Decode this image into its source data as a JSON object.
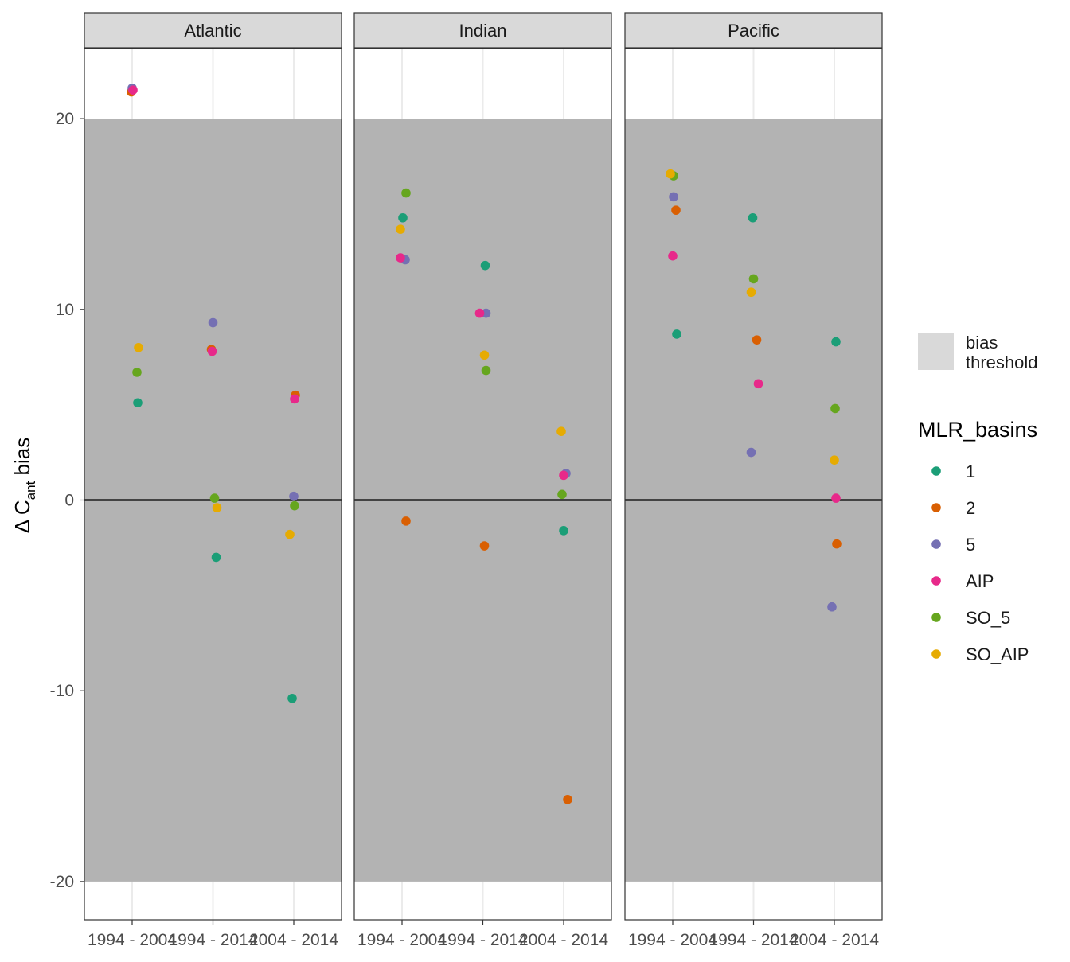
{
  "chart_data": {
    "type": "scatter",
    "facets": [
      "Atlantic",
      "Indian",
      "Pacific"
    ],
    "categories": [
      "1994 - 2004",
      "1994 - 2014",
      "2004 - 2014"
    ],
    "ylabel": {
      "prefix": "Δ C",
      "subscript": "ant",
      "suffix": " bias"
    },
    "ylim": [
      -22,
      24
    ],
    "yticks": [
      -20,
      -10,
      0,
      10,
      20
    ],
    "bias_threshold": [
      -20,
      20
    ],
    "hline": 0,
    "band_legend": {
      "line1": "bias",
      "line2": "threshold",
      "color": "#d9d9d9"
    },
    "band_color": "#b3b3b3",
    "legend": {
      "title": "MLR_basins",
      "position": "right",
      "items": [
        {
          "label": "1",
          "color": "#1b9e77"
        },
        {
          "label": "2",
          "color": "#d95f02"
        },
        {
          "label": "5",
          "color": "#7570b3"
        },
        {
          "label": "AIP",
          "color": "#e7298a"
        },
        {
          "label": "SO_5",
          "color": "#66a61e"
        },
        {
          "label": "SO_AIP",
          "color": "#e6ab02"
        }
      ]
    },
    "points": [
      {
        "basin": "Atlantic",
        "period": "1994 - 2004",
        "group": "1",
        "value": 5.1
      },
      {
        "basin": "Atlantic",
        "period": "1994 - 2004",
        "group": "2",
        "value": 21.4
      },
      {
        "basin": "Atlantic",
        "period": "1994 - 2004",
        "group": "5",
        "value": 21.6
      },
      {
        "basin": "Atlantic",
        "period": "1994 - 2004",
        "group": "AIP",
        "value": 21.5
      },
      {
        "basin": "Atlantic",
        "period": "1994 - 2004",
        "group": "SO_5",
        "value": 6.7
      },
      {
        "basin": "Atlantic",
        "period": "1994 - 2004",
        "group": "SO_AIP",
        "value": 8.0
      },
      {
        "basin": "Atlantic",
        "period": "1994 - 2014",
        "group": "1",
        "value": -3.0
      },
      {
        "basin": "Atlantic",
        "period": "1994 - 2014",
        "group": "2",
        "value": 7.9
      },
      {
        "basin": "Atlantic",
        "period": "1994 - 2014",
        "group": "5",
        "value": 9.3
      },
      {
        "basin": "Atlantic",
        "period": "1994 - 2014",
        "group": "AIP",
        "value": 7.8
      },
      {
        "basin": "Atlantic",
        "period": "1994 - 2014",
        "group": "SO_5",
        "value": 0.1
      },
      {
        "basin": "Atlantic",
        "period": "1994 - 2014",
        "group": "SO_AIP",
        "value": -0.4
      },
      {
        "basin": "Atlantic",
        "period": "2004 - 2014",
        "group": "1",
        "value": -10.4
      },
      {
        "basin": "Atlantic",
        "period": "2004 - 2014",
        "group": "2",
        "value": 5.5
      },
      {
        "basin": "Atlantic",
        "period": "2004 - 2014",
        "group": "5",
        "value": 0.2
      },
      {
        "basin": "Atlantic",
        "period": "2004 - 2014",
        "group": "AIP",
        "value": 5.3
      },
      {
        "basin": "Atlantic",
        "period": "2004 - 2014",
        "group": "SO_5",
        "value": -0.3
      },
      {
        "basin": "Atlantic",
        "period": "2004 - 2014",
        "group": "SO_AIP",
        "value": -1.8
      },
      {
        "basin": "Indian",
        "period": "1994 - 2004",
        "group": "1",
        "value": 14.8
      },
      {
        "basin": "Indian",
        "period": "1994 - 2004",
        "group": "2",
        "value": -1.1
      },
      {
        "basin": "Indian",
        "period": "1994 - 2004",
        "group": "5",
        "value": 12.6
      },
      {
        "basin": "Indian",
        "period": "1994 - 2004",
        "group": "AIP",
        "value": 12.7
      },
      {
        "basin": "Indian",
        "period": "1994 - 2004",
        "group": "SO_5",
        "value": 16.1
      },
      {
        "basin": "Indian",
        "period": "1994 - 2004",
        "group": "SO_AIP",
        "value": 14.2
      },
      {
        "basin": "Indian",
        "period": "1994 - 2014",
        "group": "1",
        "value": 12.3
      },
      {
        "basin": "Indian",
        "period": "1994 - 2014",
        "group": "2",
        "value": -2.4
      },
      {
        "basin": "Indian",
        "period": "1994 - 2014",
        "group": "5",
        "value": 9.8
      },
      {
        "basin": "Indian",
        "period": "1994 - 2014",
        "group": "AIP",
        "value": 9.8
      },
      {
        "basin": "Indian",
        "period": "1994 - 2014",
        "group": "SO_5",
        "value": 6.8
      },
      {
        "basin": "Indian",
        "period": "1994 - 2014",
        "group": "SO_AIP",
        "value": 7.6
      },
      {
        "basin": "Indian",
        "period": "2004 - 2014",
        "group": "1",
        "value": -1.6
      },
      {
        "basin": "Indian",
        "period": "2004 - 2014",
        "group": "2",
        "value": -15.7
      },
      {
        "basin": "Indian",
        "period": "2004 - 2014",
        "group": "5",
        "value": 1.4
      },
      {
        "basin": "Indian",
        "period": "2004 - 2014",
        "group": "AIP",
        "value": 1.3
      },
      {
        "basin": "Indian",
        "period": "2004 - 2014",
        "group": "SO_5",
        "value": 0.3
      },
      {
        "basin": "Indian",
        "period": "2004 - 2014",
        "group": "SO_AIP",
        "value": 3.6
      },
      {
        "basin": "Pacific",
        "period": "1994 - 2004",
        "group": "1",
        "value": 8.7
      },
      {
        "basin": "Pacific",
        "period": "1994 - 2004",
        "group": "2",
        "value": 15.2
      },
      {
        "basin": "Pacific",
        "period": "1994 - 2004",
        "group": "5",
        "value": 15.9
      },
      {
        "basin": "Pacific",
        "period": "1994 - 2004",
        "group": "AIP",
        "value": 12.8
      },
      {
        "basin": "Pacific",
        "period": "1994 - 2004",
        "group": "SO_5",
        "value": 17.0
      },
      {
        "basin": "Pacific",
        "period": "1994 - 2004",
        "group": "SO_AIP",
        "value": 17.1
      },
      {
        "basin": "Pacific",
        "period": "1994 - 2014",
        "group": "1",
        "value": 14.8
      },
      {
        "basin": "Pacific",
        "period": "1994 - 2014",
        "group": "2",
        "value": 8.4
      },
      {
        "basin": "Pacific",
        "period": "1994 - 2014",
        "group": "5",
        "value": 2.5
      },
      {
        "basin": "Pacific",
        "period": "1994 - 2014",
        "group": "AIP",
        "value": 6.1
      },
      {
        "basin": "Pacific",
        "period": "1994 - 2014",
        "group": "SO_5",
        "value": 11.6
      },
      {
        "basin": "Pacific",
        "period": "1994 - 2014",
        "group": "SO_AIP",
        "value": 10.9
      },
      {
        "basin": "Pacific",
        "period": "2004 - 2014",
        "group": "1",
        "value": 8.3
      },
      {
        "basin": "Pacific",
        "period": "2004 - 2014",
        "group": "2",
        "value": -2.3
      },
      {
        "basin": "Pacific",
        "period": "2004 - 2014",
        "group": "5",
        "value": -5.6
      },
      {
        "basin": "Pacific",
        "period": "2004 - 2014",
        "group": "AIP",
        "value": 0.1
      },
      {
        "basin": "Pacific",
        "period": "2004 - 2014",
        "group": "SO_5",
        "value": 4.8
      },
      {
        "basin": "Pacific",
        "period": "2004 - 2014",
        "group": "SO_AIP",
        "value": 2.1
      }
    ]
  }
}
